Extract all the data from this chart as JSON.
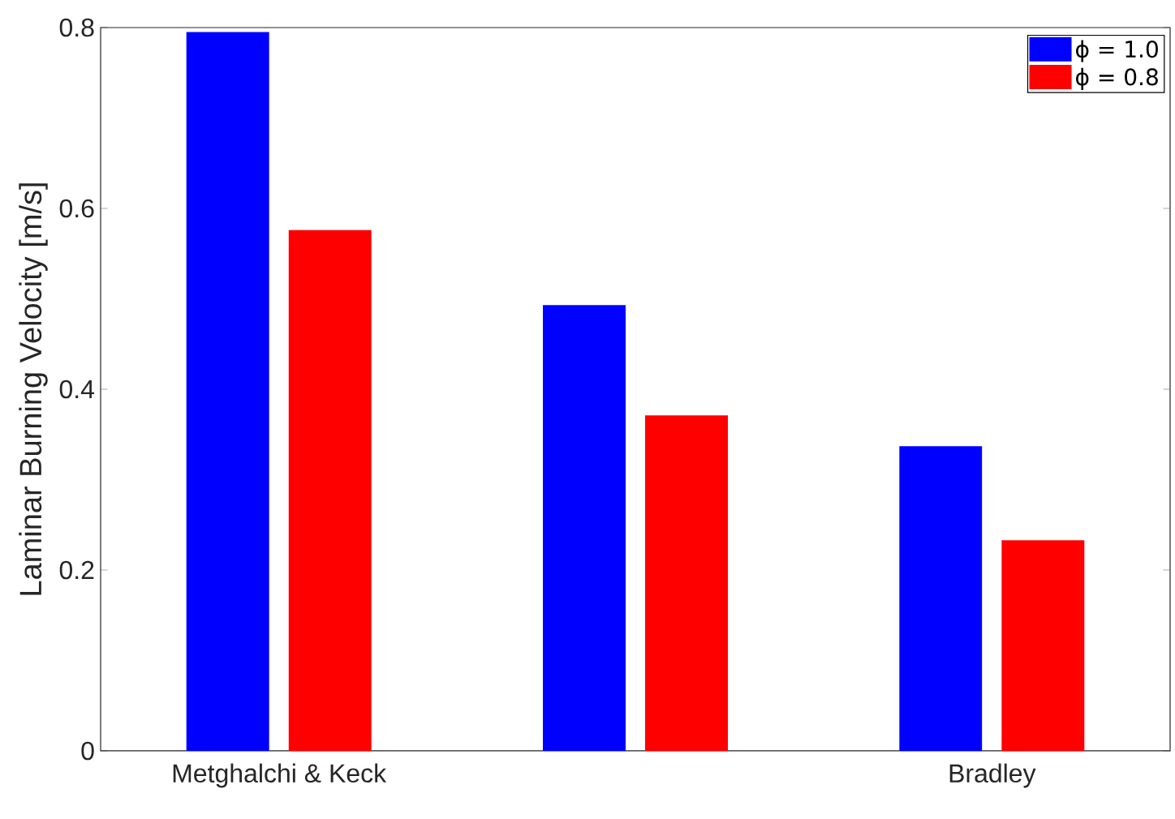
{
  "chart_data": {
    "type": "bar",
    "ylabel": "Laminar Burning Velocity [m/s]",
    "categories": [
      "Metghalchi & Keck",
      null,
      "Bradley"
    ],
    "series": [
      {
        "name": "ϕ = 1.0",
        "color": "#0000ff",
        "values": [
          0.795,
          0.493,
          0.337
        ]
      },
      {
        "name": "ϕ = 0.8",
        "color": "#ff0000",
        "values": [
          0.576,
          0.371,
          0.233
        ]
      }
    ],
    "ylim": [
      0,
      0.8
    ],
    "yticks": [
      0,
      0.2,
      0.4,
      0.6,
      0.8
    ],
    "grid": false,
    "legend": "top right"
  }
}
